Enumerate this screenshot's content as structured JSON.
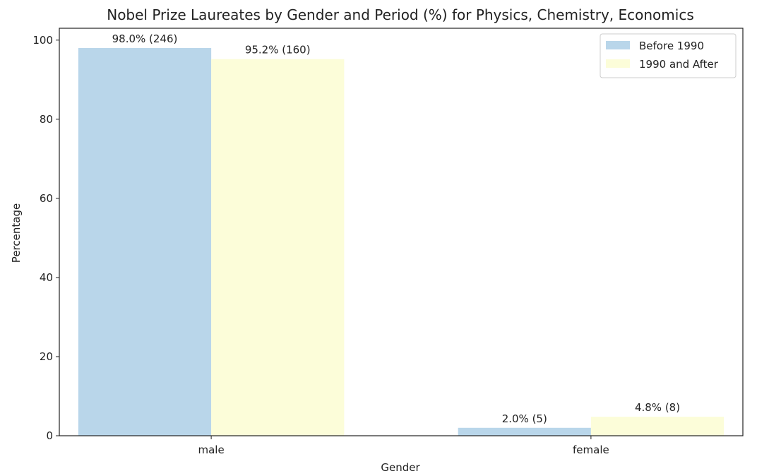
{
  "chart_data": {
    "type": "bar",
    "title": "Nobel Prize Laureates by Gender and Period (%) for Physics, Chemistry, Economics",
    "xlabel": "Gender",
    "ylabel": "Percentage",
    "categories": [
      "male",
      "female"
    ],
    "series": [
      {
        "name": "Before 1990",
        "values": [
          98.0,
          2.0
        ],
        "labels": [
          "98.0% (246)",
          "2.0% (5)"
        ],
        "color": "#b9d6ea"
      },
      {
        "name": "1990 and After",
        "values": [
          95.2,
          4.8
        ],
        "labels": [
          "95.2% (160)",
          "4.8% (8)"
        ],
        "color": "#fcfdd9"
      }
    ],
    "ylim": [
      0,
      103
    ],
    "yticks": [
      0,
      20,
      40,
      60,
      80,
      100
    ],
    "grid": false,
    "legend_position": "top-right"
  }
}
